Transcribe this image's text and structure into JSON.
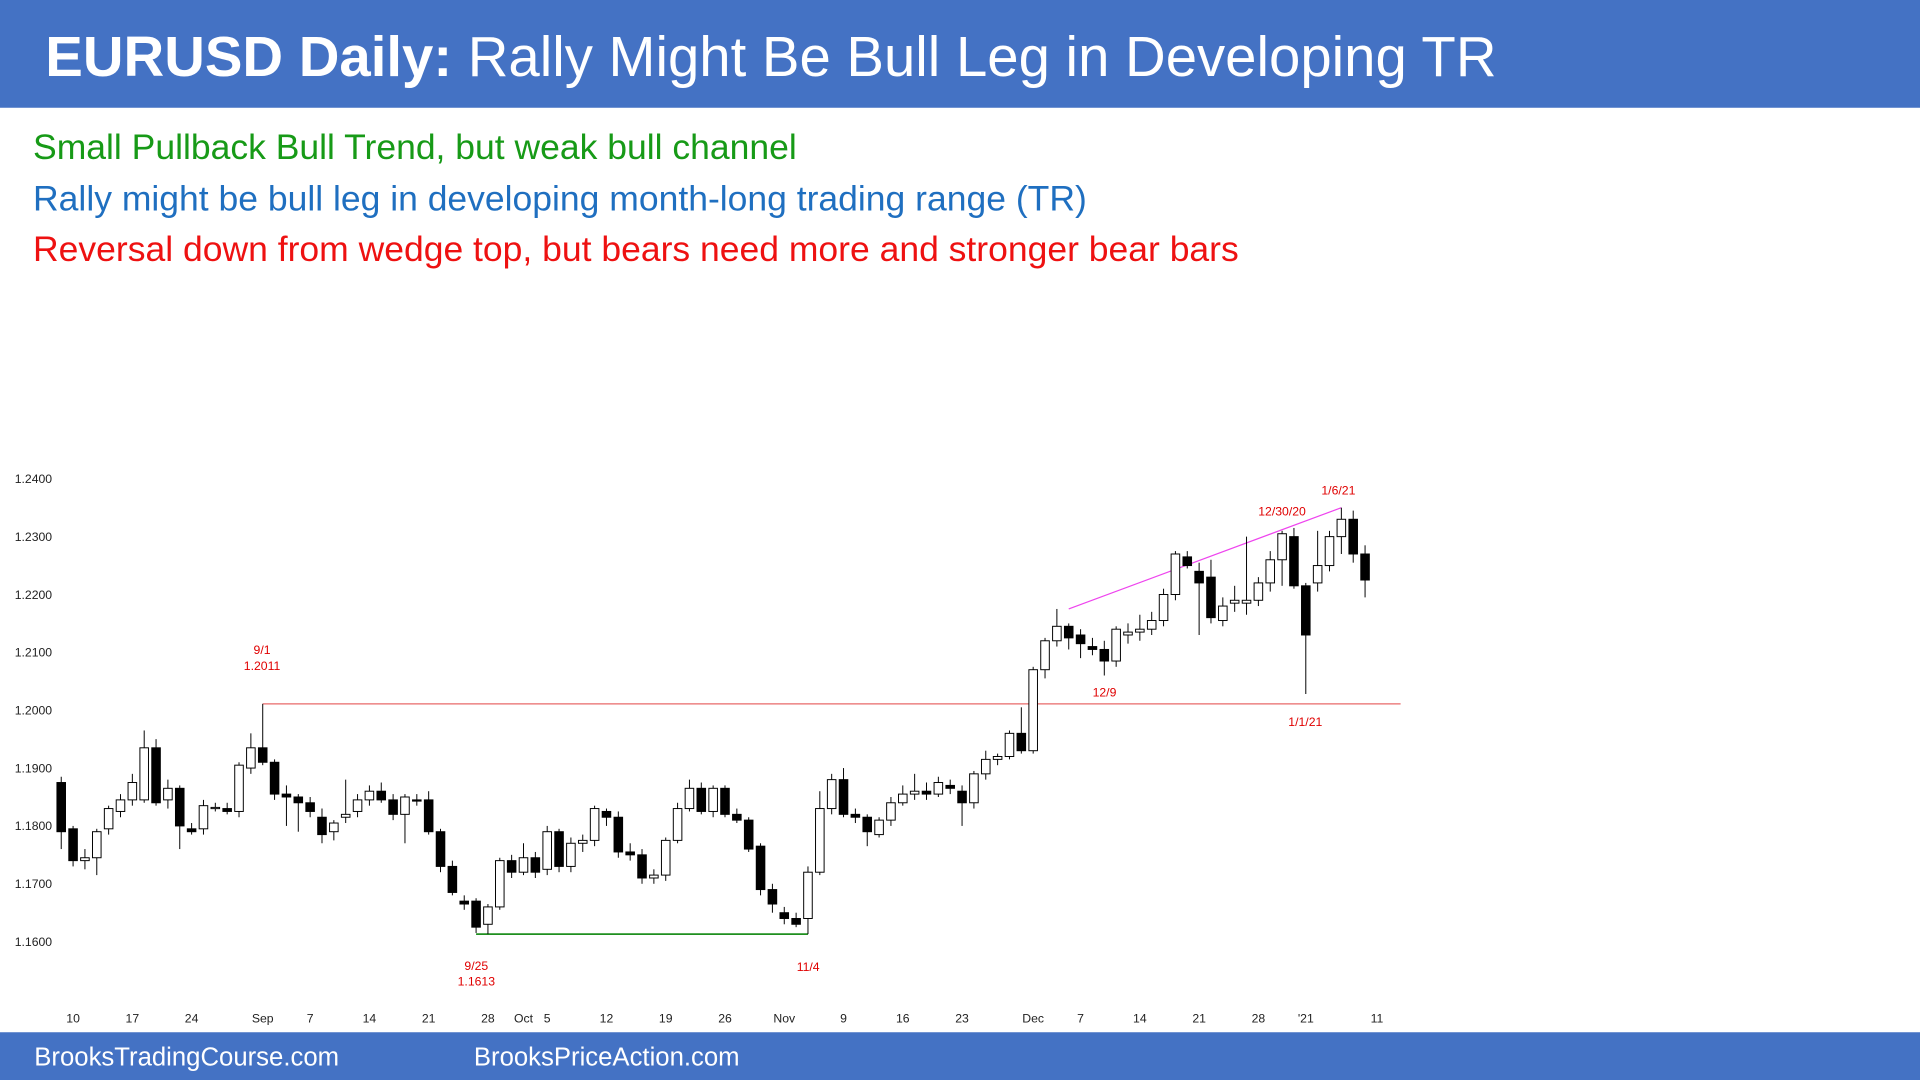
{
  "chart_data": {
    "type": "candlestick",
    "title": "EURUSD Daily:",
    "subtitle": "Rally Might Be Bull Leg in Developing TR",
    "header_color": "#4472c4",
    "notes": [
      {
        "text": "Small Pullback Bull Trend, but weak bull channel",
        "color": "#179a17"
      },
      {
        "text": "Rally might be bull leg in developing month-long trading range (TR)",
        "color": "#1f6fc0"
      },
      {
        "text": "Reversal down from wedge top, but bears need more and stronger bear bars",
        "color": "#ee1111"
      }
    ],
    "up_color": "#ffffff",
    "down_color": "#000000",
    "categories": [
      null,
      "10",
      null,
      null,
      null,
      null,
      "17",
      null,
      null,
      null,
      null,
      "24",
      null,
      null,
      null,
      null,
      null,
      "Sep",
      null,
      null,
      null,
      "7",
      null,
      null,
      null,
      null,
      "14",
      null,
      null,
      null,
      null,
      "21",
      null,
      null,
      null,
      null,
      "28",
      null,
      null,
      "Oct",
      null,
      "5",
      null,
      null,
      null,
      null,
      "12",
      null,
      null,
      null,
      null,
      "19",
      null,
      null,
      null,
      null,
      "26",
      null,
      null,
      null,
      null,
      "Nov",
      null,
      null,
      null,
      null,
      "9",
      null,
      null,
      null,
      null,
      "16",
      null,
      null,
      null,
      null,
      "23",
      null,
      null,
      null,
      null,
      null,
      "Dec",
      null,
      null,
      null,
      "7",
      null,
      null,
      null,
      null,
      "14",
      null,
      null,
      null,
      null,
      "21",
      null,
      null,
      null,
      null,
      "28",
      null,
      null,
      null,
      "'21",
      null,
      null,
      null,
      null,
      null,
      "11"
    ],
    "open": [
      1.1875,
      1.1795,
      1.174,
      1.1745,
      1.1795,
      1.1825,
      1.1845,
      1.1845,
      1.1935,
      1.1845,
      1.1865,
      1.1795,
      1.1795,
      1.183,
      1.183,
      1.1825,
      1.19,
      1.1935,
      1.191,
      1.1855,
      1.185,
      1.184,
      1.1815,
      1.179,
      1.1815,
      1.1825,
      1.1845,
      1.186,
      1.1845,
      1.182,
      1.1845,
      1.1845,
      1.179,
      1.173,
      1.167,
      1.167,
      1.163,
      1.166,
      1.174,
      1.172,
      1.1745,
      1.1725,
      1.179,
      1.173,
      1.177,
      1.1775,
      1.1825,
      1.1815,
      1.1755,
      1.175,
      1.171,
      1.1715,
      1.1775,
      1.183,
      1.1865,
      1.1825,
      1.1865,
      1.182,
      1.181,
      1.1765,
      1.169,
      1.165,
      1.164,
      1.164,
      1.172,
      1.183,
      1.188,
      1.182,
      1.1815,
      1.1785,
      1.181,
      1.184,
      1.1855,
      1.186,
      1.1855,
      1.187,
      1.186,
      1.184,
      1.189,
      1.1915,
      1.192,
      1.196,
      1.193,
      1.207,
      1.212,
      1.2145,
      1.213,
      1.211,
      1.2105,
      1.2085,
      1.213,
      1.2135,
      1.214,
      1.2155,
      1.22,
      1.2265,
      1.224,
      1.223,
      1.2155,
      1.2185,
      1.2185,
      1.219,
      1.222,
      1.226,
      1.23,
      1.2215,
      1.222,
      1.225,
      1.23,
      1.233,
      1.227,
      null
    ],
    "high": [
      1.1885,
      1.18,
      1.176,
      1.1795,
      1.1835,
      1.1855,
      1.189,
      1.1965,
      1.195,
      1.188,
      1.187,
      1.1805,
      1.1845,
      1.184,
      1.184,
      1.191,
      1.196,
      1.2011,
      1.1915,
      1.187,
      1.1855,
      1.185,
      1.183,
      1.181,
      1.188,
      1.1855,
      1.187,
      1.1875,
      1.1855,
      1.1855,
      1.1855,
      1.186,
      1.1795,
      1.174,
      1.168,
      1.1675,
      1.1665,
      1.1745,
      1.175,
      1.177,
      1.1755,
      1.18,
      1.1795,
      1.178,
      1.1785,
      1.1835,
      1.183,
      1.1825,
      1.177,
      1.176,
      1.1725,
      1.178,
      1.184,
      1.188,
      1.1875,
      1.187,
      1.187,
      1.183,
      1.1815,
      1.177,
      1.17,
      1.166,
      1.165,
      1.173,
      1.186,
      1.189,
      1.19,
      1.183,
      1.182,
      1.1815,
      1.185,
      1.187,
      1.189,
      1.1875,
      1.1885,
      1.188,
      1.187,
      1.1895,
      1.193,
      1.1925,
      1.1965,
      1.2005,
      1.2075,
      1.2125,
      1.2175,
      1.215,
      1.214,
      1.2125,
      1.212,
      1.2145,
      1.215,
      1.2165,
      1.217,
      1.221,
      1.2275,
      1.2275,
      1.2255,
      1.226,
      1.2195,
      1.2215,
      1.23,
      1.223,
      1.2275,
      1.231,
      1.2315,
      1.222,
      1.231,
      1.231,
      1.235,
      1.2345,
      1.2285,
      null
    ],
    "low": [
      1.176,
      1.173,
      1.1725,
      1.1715,
      1.1785,
      1.1815,
      1.1835,
      1.184,
      1.1835,
      1.183,
      1.176,
      1.1785,
      1.1785,
      1.1825,
      1.182,
      1.1815,
      1.189,
      1.1905,
      1.1845,
      1.18,
      1.179,
      1.1815,
      1.177,
      1.1775,
      1.1805,
      1.1815,
      1.1835,
      1.184,
      1.181,
      1.177,
      1.1835,
      1.1785,
      1.172,
      1.168,
      1.1655,
      1.1615,
      1.1613,
      1.1655,
      1.171,
      1.1715,
      1.171,
      1.1715,
      1.172,
      1.172,
      1.1755,
      1.1765,
      1.18,
      1.1745,
      1.174,
      1.17,
      1.17,
      1.1705,
      1.177,
      1.1825,
      1.182,
      1.1815,
      1.1815,
      1.1805,
      1.1755,
      1.168,
      1.165,
      1.163,
      1.1625,
      1.1613,
      1.1715,
      1.182,
      1.1815,
      1.1805,
      1.1765,
      1.178,
      1.18,
      1.1835,
      1.1845,
      1.1845,
      1.185,
      1.1855,
      1.18,
      1.183,
      1.188,
      1.1905,
      1.1915,
      1.1925,
      1.1925,
      1.2055,
      1.211,
      1.2105,
      1.209,
      1.2095,
      1.206,
      1.2075,
      1.2115,
      1.212,
      1.213,
      1.2145,
      1.219,
      1.2245,
      1.213,
      1.215,
      1.2145,
      1.217,
      1.2165,
      1.218,
      1.2205,
      1.2215,
      1.221,
      1.2028,
      1.2205,
      1.224,
      1.227,
      1.2255,
      1.2195,
      null
    ],
    "close": [
      1.179,
      1.174,
      1.1745,
      1.179,
      1.183,
      1.1845,
      1.1875,
      1.1935,
      1.184,
      1.1865,
      1.18,
      1.179,
      1.1835,
      1.1832,
      1.1825,
      1.1905,
      1.1935,
      1.191,
      1.1855,
      1.185,
      1.184,
      1.1825,
      1.1785,
      1.1805,
      1.182,
      1.1845,
      1.186,
      1.1845,
      1.182,
      1.185,
      1.1843,
      1.179,
      1.173,
      1.1685,
      1.1665,
      1.1625,
      1.166,
      1.174,
      1.172,
      1.1745,
      1.172,
      1.179,
      1.173,
      1.177,
      1.1775,
      1.183,
      1.1815,
      1.1755,
      1.175,
      1.171,
      1.1715,
      1.1775,
      1.183,
      1.1865,
      1.1825,
      1.1865,
      1.182,
      1.181,
      1.176,
      1.169,
      1.1665,
      1.164,
      1.163,
      1.172,
      1.183,
      1.188,
      1.182,
      1.1815,
      1.179,
      1.181,
      1.184,
      1.1855,
      1.186,
      1.1855,
      1.1875,
      1.1865,
      1.184,
      1.189,
      1.1915,
      1.192,
      1.196,
      1.193,
      1.207,
      1.212,
      1.2145,
      1.2125,
      1.2115,
      1.2105,
      1.2085,
      1.214,
      1.2135,
      1.214,
      1.2155,
      1.22,
      1.227,
      1.225,
      1.222,
      1.216,
      1.218,
      1.219,
      1.219,
      1.222,
      1.226,
      1.2305,
      1.2215,
      1.213,
      1.225,
      1.23,
      1.233,
      1.227,
      1.2225,
      null
    ],
    "ylim": [
      1.156,
      1.244
    ],
    "yticks": [
      {
        "value": 1.16,
        "label": "1.1600"
      },
      {
        "value": 1.17,
        "label": "1.1700"
      },
      {
        "value": 1.18,
        "label": "1.1800"
      },
      {
        "value": 1.19,
        "label": "1.1900"
      },
      {
        "value": 1.2,
        "label": "1.2000"
      },
      {
        "value": 1.21,
        "label": "1.2100"
      },
      {
        "value": 1.22,
        "label": "1.2200"
      },
      {
        "value": 1.23,
        "label": "1.2300"
      },
      {
        "value": 1.24,
        "label": "1.2400"
      }
    ],
    "lines": [
      {
        "color": "#e86a6a",
        "from": 17,
        "to": 113,
        "values": [
          1.2011,
          1.2011
        ]
      },
      {
        "color": "#1f8f1f",
        "from": 35,
        "to": 63,
        "values": [
          1.1613,
          1.1613
        ]
      },
      {
        "color": "#ee44ee",
        "from": 85,
        "to": 108,
        "values": [
          1.2175,
          1.235
        ]
      }
    ],
    "annotation_color": "#e00000",
    "annotations": [
      "9/1",
      "1.2011",
      "9/25",
      "1.1613",
      "11/4",
      "12/9",
      "1/1/21",
      "12/30/20",
      "1/6/21"
    ]
  },
  "footer": {
    "color": "#4472c4",
    "links": [
      "BrooksTradingCourse.com",
      "BrooksPriceAction.com"
    ]
  }
}
